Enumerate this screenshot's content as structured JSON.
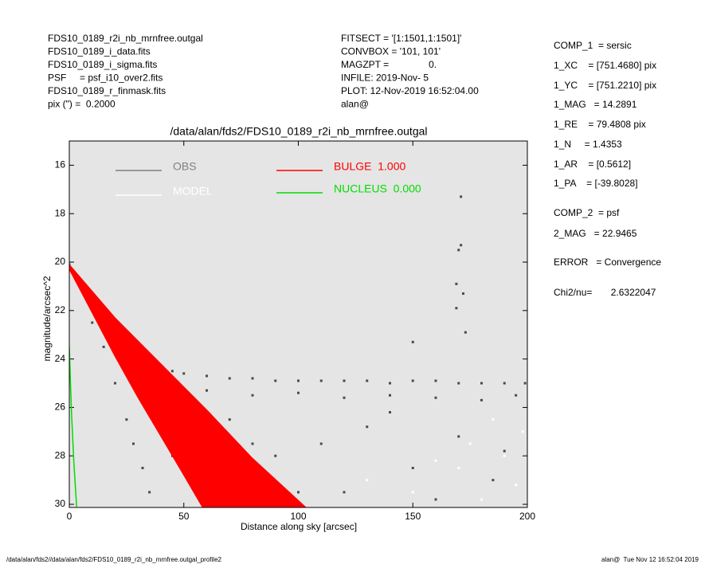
{
  "chart_data": {
    "type": "scatter",
    "title": "/data/alan/fds2/FDS10_0189_r2i_nb_mrnfree.outgal",
    "xlabel": "Distance along sky [arcsec]",
    "ylabel": "magnitude/arcsec^2",
    "annotations": {
      "left": [
        "FDS10_0189_r2i_nb_mrnfree.outgal",
        "FDS10_0189_i_data.fits",
        "FDS10_0189_i_sigma.fits",
        "PSF     = psf_i10_over2.fits",
        "FDS10_0189_r_finmask.fits",
        "pix (\") =  0.2000"
      ],
      "middle": [
        "FITSECT = '[1:1501,1:1501]'",
        "CONVBOX = '101, 101'",
        "MAGZPT =               0.",
        "INFILE: 2019-Nov- 5",
        "PLOT: 12-Nov-2019 16:52:04.00",
        "alan@"
      ],
      "right": [
        "COMP_1  = sersic",
        "1_XC    = [751.4680] pix",
        "1_YC    = [751.2210] pix",
        "1_MAG   = 14.2891",
        "1_RE    = 79.4808 pix",
        "1_N     = 1.4353",
        "1_AR    = [0.5612]",
        "1_PA    = [-39.8028]",
        "COMP_2  = psf",
        "2_MAG   = 22.9465",
        "ERROR   = Convergence",
        "Chi2/nu=       2.6322047"
      ],
      "footer_left": "/data/alan/fds2//data/alan/fds2/FDS10_0189_r2i_nb_mrnfree.outgal_profile2",
      "footer_right": "alan@  Tue Nov 12 16:52:04 2019"
    },
    "xlim": [
      0,
      200
    ],
    "xticks": [
      0,
      50,
      100,
      150,
      200
    ],
    "ylim": [
      30.13,
      15.0
    ],
    "yticks": [
      16,
      18,
      20,
      22,
      24,
      26,
      28,
      30
    ],
    "background": "#e5e5e5",
    "series": [
      {
        "name": "OBS",
        "color": "#808080",
        "point_color": "#4a4a4a",
        "marker": "points",
        "x": [
          0,
          2,
          5,
          8,
          10,
          13,
          16,
          20,
          25,
          30,
          35,
          40,
          45,
          50,
          60,
          70,
          80,
          90,
          100,
          110,
          120,
          130,
          140,
          150,
          160,
          170,
          180,
          190,
          199,
          40,
          60,
          80,
          100,
          120,
          140,
          160,
          180,
          195,
          10,
          15,
          20,
          25,
          28,
          32,
          35,
          171,
          170,
          171,
          169,
          172,
          169,
          173,
          150,
          50,
          70,
          90,
          110,
          130,
          150,
          170,
          185,
          60,
          120,
          45,
          140,
          80,
          100,
          160,
          190
        ],
        "values": [
          20.1,
          20.4,
          20.9,
          21.4,
          21.7,
          22.1,
          22.5,
          22.9,
          23.4,
          23.8,
          24.1,
          24.3,
          24.5,
          24.6,
          24.7,
          24.8,
          24.8,
          24.9,
          24.9,
          24.9,
          24.9,
          24.9,
          25.0,
          24.9,
          24.9,
          25.0,
          25.0,
          25.0,
          25.0,
          25.2,
          25.3,
          25.5,
          25.4,
          25.6,
          25.5,
          25.6,
          25.7,
          25.5,
          22.5,
          23.5,
          25.0,
          26.5,
          27.5,
          28.5,
          29.5,
          17.3,
          19.5,
          19.3,
          20.9,
          21.3,
          21.9,
          22.9,
          23.3,
          27.0,
          26.5,
          28.0,
          27.5,
          26.8,
          28.5,
          27.2,
          29.0,
          29.0,
          29.5,
          28.0,
          26.2,
          27.5,
          29.5,
          29.8,
          27.8
        ]
      },
      {
        "name": "MODEL",
        "color": "#ffffff",
        "marker": "points",
        "x": [
          130,
          150,
          170,
          180,
          190,
          195,
          160,
          185,
          198,
          175
        ],
        "values": [
          29.0,
          29.5,
          28.5,
          29.8,
          28.0,
          29.2,
          28.2,
          26.5,
          27.0,
          27.5
        ]
      },
      {
        "name": "BULGE  1.000",
        "color": "#ff0000",
        "marker": "band",
        "x": [
          0,
          20,
          40,
          60,
          80,
          103
        ],
        "values": [
          20.1,
          22.3,
          24.2,
          26.1,
          28.1,
          30.1
        ],
        "x_faint": [
          0,
          10,
          20,
          30,
          40,
          50,
          58
        ],
        "values_faint": [
          20.3,
          22.1,
          23.9,
          25.6,
          27.2,
          28.8,
          30.1
        ]
      },
      {
        "name": "NUCLEUS  0.000",
        "color": "#00dd00",
        "marker": "line",
        "x": [
          0,
          0.5,
          1,
          2,
          3.2
        ],
        "values": [
          23.5,
          25.0,
          26.3,
          28.3,
          30.1
        ]
      }
    ]
  }
}
